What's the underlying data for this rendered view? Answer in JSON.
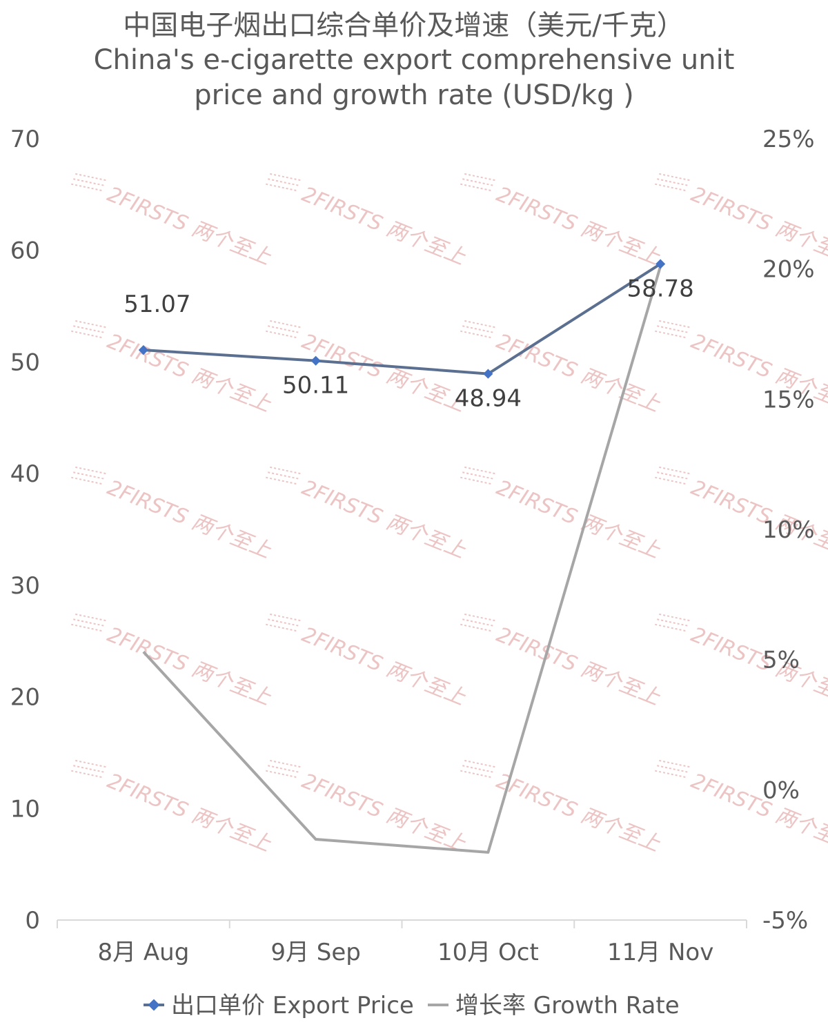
{
  "chart_data": {
    "type": "line",
    "title": "中国电子烟出口综合单价及增速（美元/千克）",
    "subtitle_lines": [
      "China's e-cigarette export comprehensive unit",
      "price and growth rate (USD/kg )"
    ],
    "categories": [
      "8月 Aug",
      "9月 Sep",
      "10月 Oct",
      "11月 Nov"
    ],
    "series": [
      {
        "name": "出口单价 Export Price",
        "axis": "left",
        "color": "#4472c4",
        "line_color": "#5b7090",
        "values": [
          51.07,
          50.11,
          48.94,
          58.78
        ],
        "labels": [
          "51.07",
          "50.11",
          "48.94",
          "58.78"
        ]
      },
      {
        "name": "增长率 Growth Rate",
        "axis": "right",
        "color": "#a6a6a6",
        "values": [
          5.3,
          -1.9,
          -2.4,
          20.1
        ]
      }
    ],
    "y_left": {
      "min": 0,
      "max": 70,
      "ticks": [
        "0",
        "10",
        "20",
        "30",
        "40",
        "50",
        "60",
        "70"
      ]
    },
    "y_right": {
      "min": -5,
      "max": 25,
      "ticks": [
        "-5%",
        "0%",
        "5%",
        "10%",
        "15%",
        "20%",
        "25%"
      ]
    },
    "legend_position": "bottom",
    "grid": false,
    "watermark_text": "2FIRSTS 两个至上"
  }
}
